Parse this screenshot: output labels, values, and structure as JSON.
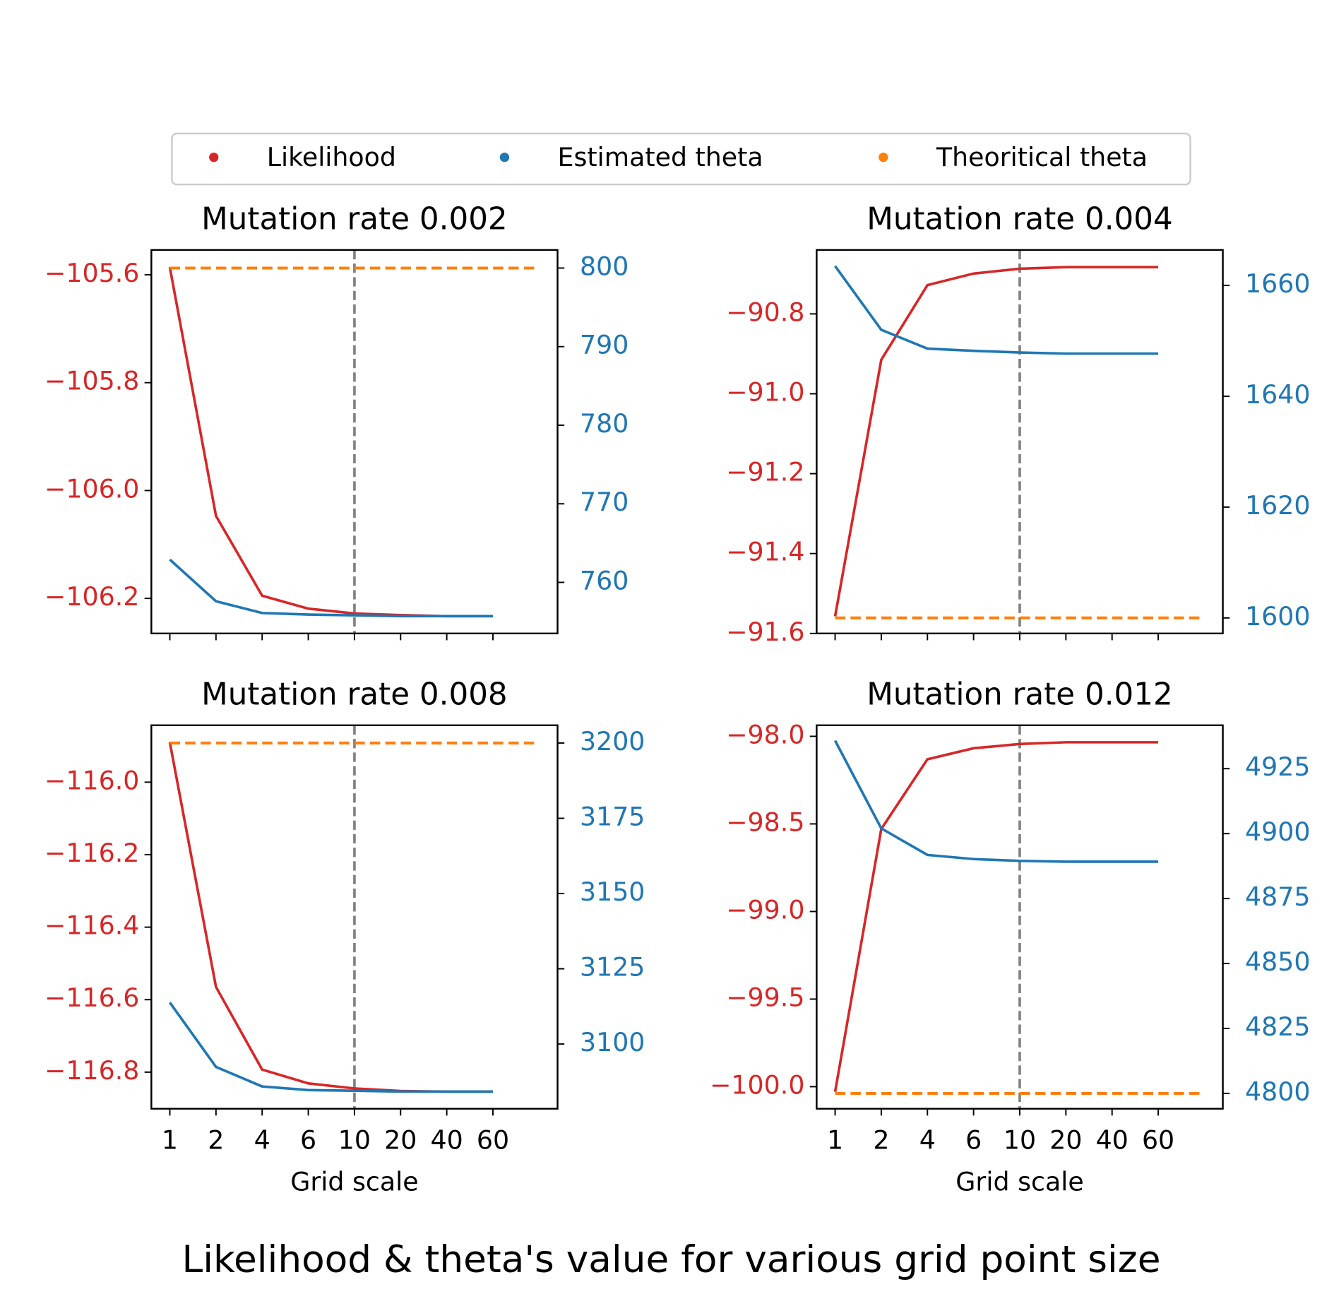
{
  "title": "Likelihood & theta's value for various grid point size",
  "chart_data": [
    {
      "type": "line",
      "title": "Mutation rate 0.002",
      "categories": [
        "1",
        "2",
        "4",
        "6",
        "10",
        "20",
        "40",
        "60"
      ],
      "vline": "10",
      "series": [
        {
          "name": "Likelihood",
          "color": "#d62728",
          "axis": "y",
          "values": [
            -105.586,
            -106.047,
            -106.195,
            -106.219,
            -106.228,
            -106.231,
            -106.233,
            -106.233
          ]
        },
        {
          "name": "Estimated theta",
          "color": "#1f77b4",
          "axis": "y2",
          "values": [
            762.9,
            757.6,
            756.1,
            755.9,
            755.8,
            755.7,
            755.7,
            755.7
          ]
        },
        {
          "name": "Theoritical theta",
          "color": "#ff7f0e",
          "axis": "y2",
          "value": 800
        }
      ],
      "ylim": [
        -106.265,
        -105.554
      ],
      "yticks": [
        {
          "value": -105.6,
          "label": "−105.6"
        },
        {
          "value": -105.8,
          "label": "−105.8"
        },
        {
          "value": -106.0,
          "label": "−106.0"
        },
        {
          "value": -106.2,
          "label": "−106.2"
        }
      ],
      "y2lim": [
        753.5,
        802.3
      ],
      "y2ticks": [
        800,
        790,
        780,
        770,
        760
      ]
    },
    {
      "type": "line",
      "title": "Mutation rate 0.004",
      "categories": [
        "1",
        "2",
        "4",
        "6",
        "10",
        "20",
        "40",
        "60"
      ],
      "vline": "10",
      "series": [
        {
          "name": "Likelihood",
          "color": "#d62728",
          "axis": "y",
          "values": [
            -91.557,
            -90.915,
            -90.728,
            -90.699,
            -90.687,
            -90.683,
            -90.683,
            -90.683
          ]
        },
        {
          "name": "Estimated theta",
          "color": "#1f77b4",
          "axis": "y2",
          "values": [
            1663.5,
            1652.0,
            1648.6,
            1648.2,
            1647.9,
            1647.7,
            1647.7,
            1647.7
          ]
        },
        {
          "name": "Theoritical theta",
          "color": "#ff7f0e",
          "axis": "y2",
          "value": 1600
        }
      ],
      "ylim": [
        -91.6,
        -90.64
      ],
      "yticks": [
        {
          "value": -90.8,
          "label": "−90.8"
        },
        {
          "value": -91.0,
          "label": "−91.0"
        },
        {
          "value": -91.2,
          "label": "−91.2"
        },
        {
          "value": -91.4,
          "label": "−91.4"
        },
        {
          "value": -91.6,
          "label": "−91.6"
        }
      ],
      "y2lim": [
        1597.2,
        1666.4
      ],
      "y2ticks": [
        1660,
        1640,
        1620,
        1600
      ]
    },
    {
      "type": "line",
      "title": "Mutation rate 0.008",
      "xlabel": "Grid scale",
      "categories": [
        "1",
        "2",
        "4",
        "6",
        "10",
        "20",
        "40",
        "60"
      ],
      "vline": "10",
      "series": [
        {
          "name": "Likelihood",
          "color": "#d62728",
          "axis": "y",
          "values": [
            -115.89,
            -116.565,
            -116.793,
            -116.831,
            -116.845,
            -116.852,
            -116.854,
            -116.854
          ]
        },
        {
          "name": "Estimated theta",
          "color": "#1f77b4",
          "axis": "y2",
          "values": [
            3113.8,
            3092.4,
            3085.9,
            3084.7,
            3084.5,
            3084.2,
            3084.2,
            3084.2
          ]
        },
        {
          "name": "Theoritical theta",
          "color": "#ff7f0e",
          "axis": "y2",
          "value": 3200
        }
      ],
      "ylim": [
        -116.901,
        -115.843
      ],
      "yticks": [
        {
          "value": -116.0,
          "label": "−116.0"
        },
        {
          "value": -116.2,
          "label": "−116.2"
        },
        {
          "value": -116.4,
          "label": "−116.4"
        },
        {
          "value": -116.6,
          "label": "−116.6"
        },
        {
          "value": -116.8,
          "label": "−116.8"
        }
      ],
      "y2lim": [
        3078.5,
        3205.9
      ],
      "y2ticks": [
        3200,
        3175,
        3150,
        3125,
        3100
      ]
    },
    {
      "type": "line",
      "title": "Mutation rate 0.012",
      "xlabel": "Grid scale",
      "categories": [
        "1",
        "2",
        "4",
        "6",
        "10",
        "20",
        "40",
        "60"
      ],
      "vline": "10",
      "series": [
        {
          "name": "Likelihood",
          "color": "#d62728",
          "axis": "y",
          "values": [
            -100.029,
            -98.529,
            -98.131,
            -98.068,
            -98.044,
            -98.034,
            -98.034,
            -98.034
          ]
        },
        {
          "name": "Estimated theta",
          "color": "#1f77b4",
          "axis": "y2",
          "values": [
            4935.8,
            4902.0,
            4891.8,
            4890.2,
            4889.5,
            4889.2,
            4889.2,
            4889.2
          ]
        },
        {
          "name": "Theoritical theta",
          "color": "#ff7f0e",
          "axis": "y2",
          "value": 4800
        }
      ],
      "ylim": [
        -100.126,
        -97.937
      ],
      "yticks": [
        {
          "value": -98.0,
          "label": "−98.0"
        },
        {
          "value": -98.5,
          "label": "−98.5"
        },
        {
          "value": -99.0,
          "label": "−99.0"
        },
        {
          "value": -99.5,
          "label": "−99.5"
        },
        {
          "value": -100.0,
          "label": "−100.0"
        }
      ],
      "y2lim": [
        4794.1,
        4941.7
      ],
      "y2ticks": [
        4925,
        4900,
        4875,
        4850,
        4825,
        4800
      ]
    }
  ]
}
